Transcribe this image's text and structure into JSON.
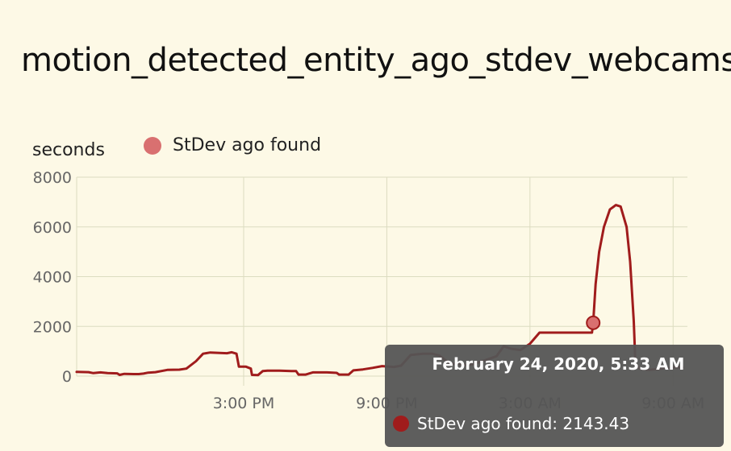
{
  "chart_data": {
    "type": "line",
    "title": "motion_detected_entity_ago_stdev_webcams",
    "ylabel": "seconds",
    "ylim": [
      0,
      8000
    ],
    "yticks": [
      "8000",
      "6000",
      "4000",
      "2000",
      "0"
    ],
    "xticks": [
      "3:00 PM",
      "9:00 PM",
      "3:00 AM",
      "9:00 AM"
    ],
    "grid": true,
    "legend_position": "top",
    "series": [
      {
        "name": "StDev ago found",
        "color": "#a01c1c",
        "points": [
          [
            -1.0,
            170
          ],
          [
            -0.5,
            160
          ],
          [
            -0.3,
            120
          ],
          [
            0.0,
            150
          ],
          [
            0.3,
            120
          ],
          [
            0.7,
            110
          ],
          [
            0.8,
            50
          ],
          [
            1.0,
            90
          ],
          [
            1.4,
            80
          ],
          [
            1.6,
            80
          ],
          [
            1.8,
            100
          ],
          [
            2.0,
            140
          ],
          [
            2.3,
            160
          ],
          [
            2.8,
            250
          ],
          [
            3.3,
            260
          ],
          [
            3.6,
            300
          ],
          [
            4.0,
            600
          ],
          [
            4.3,
            900
          ],
          [
            4.6,
            950
          ],
          [
            5.0,
            930
          ],
          [
            5.3,
            920
          ],
          [
            5.5,
            960
          ],
          [
            5.7,
            900
          ],
          [
            5.8,
            380
          ],
          [
            6.1,
            380
          ],
          [
            6.3,
            300
          ],
          [
            6.35,
            50
          ],
          [
            6.6,
            40
          ],
          [
            6.8,
            200
          ],
          [
            7.0,
            220
          ],
          [
            7.5,
            220
          ],
          [
            8.0,
            200
          ],
          [
            8.2,
            200
          ],
          [
            8.3,
            60
          ],
          [
            8.6,
            60
          ],
          [
            8.9,
            150
          ],
          [
            9.5,
            150
          ],
          [
            9.9,
            130
          ],
          [
            10.0,
            60
          ],
          [
            10.4,
            60
          ],
          [
            10.6,
            230
          ],
          [
            11.0,
            270
          ],
          [
            11.4,
            330
          ],
          [
            11.8,
            400
          ],
          [
            12.3,
            370
          ],
          [
            12.6,
            420
          ],
          [
            13.0,
            850
          ],
          [
            13.5,
            900
          ],
          [
            13.9,
            900
          ],
          [
            14.2,
            830
          ],
          [
            14.5,
            600
          ],
          [
            14.7,
            500
          ],
          [
            15.0,
            500
          ],
          [
            15.3,
            450
          ],
          [
            15.6,
            470
          ],
          [
            16.0,
            600
          ],
          [
            16.3,
            700
          ],
          [
            16.6,
            800
          ],
          [
            16.9,
            1200
          ],
          [
            17.2,
            1100
          ],
          [
            17.6,
            1050
          ],
          [
            18.0,
            1300
          ],
          [
            18.4,
            1750
          ],
          [
            20.6,
            1750
          ],
          [
            20.65,
            2143.43
          ],
          [
            20.75,
            3700
          ],
          [
            20.9,
            5000
          ],
          [
            21.1,
            6000
          ],
          [
            21.35,
            6700
          ],
          [
            21.6,
            6880
          ],
          [
            21.8,
            6820
          ],
          [
            22.05,
            6000
          ],
          [
            22.2,
            4600
          ],
          [
            22.35,
            2200
          ],
          [
            22.42,
            500
          ],
          [
            22.6,
            300
          ],
          [
            23.0,
            250
          ],
          [
            24.0,
            350
          ],
          [
            24.4,
            350
          ]
        ]
      }
    ],
    "highlight": {
      "x": 20.65,
      "y": 2143.43
    }
  },
  "tooltip": {
    "title": "February 24, 2020, 5:33 AM",
    "value_text": "StDev ago found: 2143.43"
  }
}
